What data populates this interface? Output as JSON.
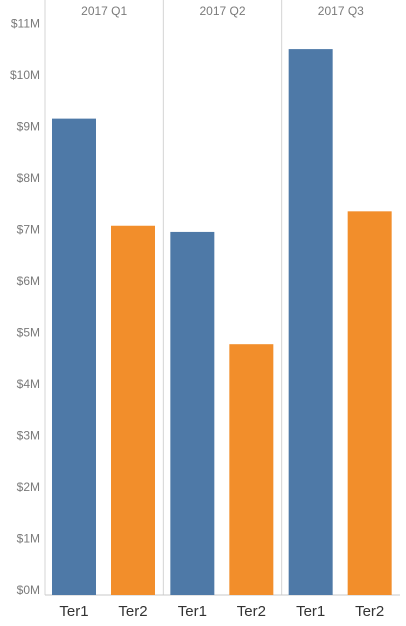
{
  "chart_data": {
    "type": "bar",
    "title": "",
    "xlabel": "",
    "ylabel": "",
    "panels": [
      "2017 Q1",
      "2017 Q2",
      "2017 Q3"
    ],
    "categories": [
      "Ter1",
      "Ter2"
    ],
    "values": [
      [
        9.25,
        7.17
      ],
      [
        7.05,
        4.87
      ],
      [
        10.6,
        7.45
      ]
    ],
    "y_ticks": [
      0,
      1,
      2,
      3,
      4,
      5,
      6,
      7,
      8,
      9,
      10,
      11
    ],
    "y_tick_labels": [
      "$0M",
      "$1M",
      "$2M",
      "$3M",
      "$4M",
      "$5M",
      "$6M",
      "$7M",
      "$8M",
      "$9M",
      "$10M",
      "$11M"
    ],
    "ylim": [
      0,
      11.2
    ],
    "grid": false,
    "colors": {
      "Ter1": "#4e79a7",
      "Ter2": "#f28e2b"
    }
  }
}
